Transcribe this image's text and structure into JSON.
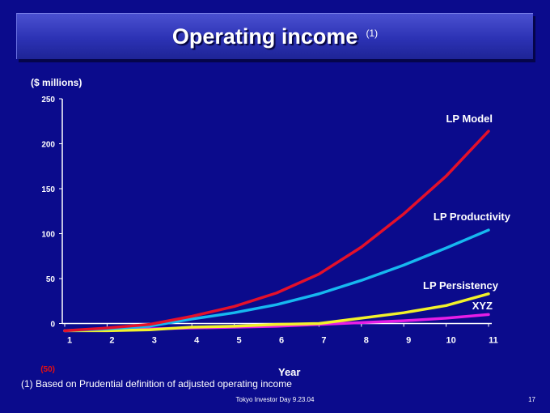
{
  "title": "Operating income",
  "title_note": "(1)",
  "footnote": "(1) Based on Prudential definition of adjusted operating income",
  "footer": "Tokyo Investor Day 9.23.04",
  "page_number": "17",
  "colors": {
    "background": "#0b0b8c",
    "lp_model": "#e4102a",
    "lp_productivity": "#16b8f0",
    "lp_persistency": "#f2f22a",
    "xyz": "#e61ee6",
    "negative_label": "#e41010"
  },
  "chart_data": {
    "type": "line",
    "ylabel": "($ millions)",
    "xlabel": "Year",
    "x": [
      1,
      2,
      3,
      4,
      5,
      6,
      7,
      8,
      9,
      10,
      11
    ],
    "ylim": [
      -50,
      250
    ],
    "y_ticks": [
      "(50)",
      "0",
      "50",
      "100",
      "150",
      "200",
      "250"
    ],
    "y_tick_values": [
      -50,
      0,
      50,
      100,
      150,
      200,
      250
    ],
    "x_tick_labels": [
      "1",
      "2",
      "3",
      "4",
      "5",
      "6",
      "7",
      "8",
      "9",
      "10",
      "11"
    ],
    "grid": false,
    "series": [
      {
        "name": "LP Model",
        "color": "#e4102a",
        "values": [
          -8,
          -5,
          -1,
          8,
          19,
          34,
          55,
          85,
          122,
          164,
          214
        ]
      },
      {
        "name": "LP Productivity",
        "color": "#16b8f0",
        "values": [
          -8,
          -6,
          -3,
          5,
          12,
          21,
          33,
          48,
          65,
          84,
          104
        ]
      },
      {
        "name": "LP Persistency",
        "color": "#f2f22a",
        "values": [
          -8,
          -8,
          -7,
          -4,
          -3,
          -1,
          0,
          6,
          12,
          20,
          33
        ]
      },
      {
        "name": "XYZ",
        "color": "#e61ee6",
        "values": [
          -8,
          -7,
          -6,
          -5,
          -4,
          -3,
          -1,
          1,
          3,
          6,
          10
        ]
      }
    ]
  }
}
